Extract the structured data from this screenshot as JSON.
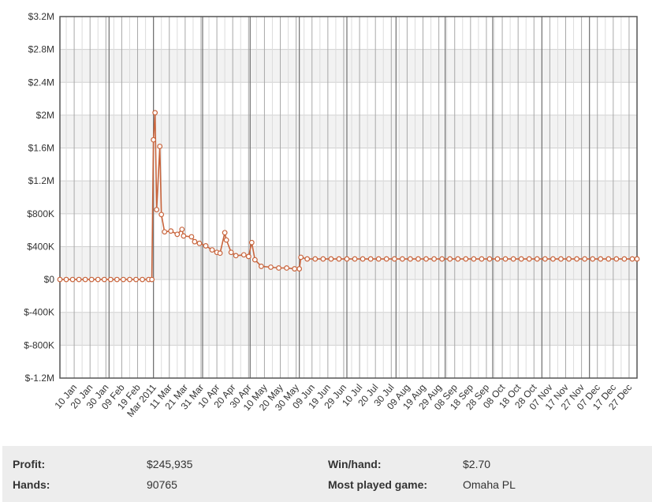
{
  "chart_data": {
    "type": "line",
    "y_ticks": [
      "$3.2M",
      "$2.8M",
      "$2.4M",
      "$2M",
      "$1.6M",
      "$1.2M",
      "$800K",
      "$400K",
      "$0",
      "$-400K",
      "$-800K",
      "$-1.2M"
    ],
    "ylim": [
      -1200000,
      3200000
    ],
    "x_ticks": [
      "10 Jan",
      "20 Jan",
      "30 Jan",
      "09 Feb",
      "19 Feb",
      "Mar 2011",
      "11 Mar",
      "21 Mar",
      "31 Mar",
      "10 Apr",
      "20 Apr",
      "30 Apr",
      "10 May",
      "20 May",
      "30 May",
      "09 Jun",
      "19 Jun",
      "29 Jun",
      "10 Jul",
      "20 Jul",
      "30 Jul",
      "09 Aug",
      "19 Aug",
      "29 Aug",
      "08 Sep",
      "18 Sep",
      "28 Sep",
      "08 Oct",
      "18 Oct",
      "28 Oct",
      "07 Nov",
      "17 Nov",
      "27 Nov",
      "07 Dec",
      "17 Dec",
      "27 Dec"
    ],
    "xlim": [
      "2011-01-01",
      "2011-12-31"
    ],
    "series": [
      {
        "color": "#c8643c",
        "points": [
          [
            "2011-01-01",
            0
          ],
          [
            "2011-01-05",
            0
          ],
          [
            "2011-01-09",
            0
          ],
          [
            "2011-01-13",
            0
          ],
          [
            "2011-01-17",
            0
          ],
          [
            "2011-01-21",
            0
          ],
          [
            "2011-01-25",
            0
          ],
          [
            "2011-01-29",
            0
          ],
          [
            "2011-02-02",
            0
          ],
          [
            "2011-02-06",
            0
          ],
          [
            "2011-02-10",
            0
          ],
          [
            "2011-02-14",
            0
          ],
          [
            "2011-02-18",
            0
          ],
          [
            "2011-02-22",
            0
          ],
          [
            "2011-02-26",
            0
          ],
          [
            "2011-02-28",
            0
          ],
          [
            "2011-03-01",
            1700000
          ],
          [
            "2011-03-02",
            2030000
          ],
          [
            "2011-03-03",
            850000
          ],
          [
            "2011-03-05",
            1620000
          ],
          [
            "2011-03-06",
            790000
          ],
          [
            "2011-03-08",
            580000
          ],
          [
            "2011-03-12",
            590000
          ],
          [
            "2011-03-16",
            550000
          ],
          [
            "2011-03-19",
            610000
          ],
          [
            "2011-03-20",
            530000
          ],
          [
            "2011-03-25",
            520000
          ],
          [
            "2011-03-27",
            460000
          ],
          [
            "2011-03-30",
            440000
          ],
          [
            "2011-04-03",
            410000
          ],
          [
            "2011-04-07",
            360000
          ],
          [
            "2011-04-10",
            330000
          ],
          [
            "2011-04-12",
            320000
          ],
          [
            "2011-04-15",
            570000
          ],
          [
            "2011-04-16",
            480000
          ],
          [
            "2011-04-19",
            330000
          ],
          [
            "2011-04-22",
            290000
          ],
          [
            "2011-04-27",
            300000
          ],
          [
            "2011-04-30",
            280000
          ],
          [
            "2011-05-02",
            450000
          ],
          [
            "2011-05-04",
            240000
          ],
          [
            "2011-05-08",
            160000
          ],
          [
            "2011-05-14",
            150000
          ],
          [
            "2011-05-19",
            140000
          ],
          [
            "2011-05-24",
            140000
          ],
          [
            "2011-05-29",
            130000
          ],
          [
            "2011-06-01",
            130000
          ],
          [
            "2011-06-02",
            270000
          ],
          [
            "2011-06-06",
            250000
          ],
          [
            "2011-06-11",
            250000
          ],
          [
            "2011-06-16",
            250000
          ],
          [
            "2011-06-21",
            250000
          ],
          [
            "2011-06-26",
            250000
          ],
          [
            "2011-07-01",
            250000
          ],
          [
            "2011-07-06",
            250000
          ],
          [
            "2011-07-11",
            250000
          ],
          [
            "2011-07-16",
            250000
          ],
          [
            "2011-07-21",
            250000
          ],
          [
            "2011-07-26",
            250000
          ],
          [
            "2011-07-31",
            250000
          ],
          [
            "2011-08-05",
            250000
          ],
          [
            "2011-08-10",
            250000
          ],
          [
            "2011-08-15",
            250000
          ],
          [
            "2011-08-20",
            250000
          ],
          [
            "2011-08-25",
            250000
          ],
          [
            "2011-08-30",
            250000
          ],
          [
            "2011-09-04",
            250000
          ],
          [
            "2011-09-09",
            250000
          ],
          [
            "2011-09-14",
            250000
          ],
          [
            "2011-09-19",
            250000
          ],
          [
            "2011-09-24",
            250000
          ],
          [
            "2011-09-29",
            250000
          ],
          [
            "2011-10-04",
            250000
          ],
          [
            "2011-10-09",
            250000
          ],
          [
            "2011-10-14",
            250000
          ],
          [
            "2011-10-19",
            250000
          ],
          [
            "2011-10-24",
            250000
          ],
          [
            "2011-10-29",
            250000
          ],
          [
            "2011-11-03",
            250000
          ],
          [
            "2011-11-08",
            250000
          ],
          [
            "2011-11-13",
            250000
          ],
          [
            "2011-11-18",
            250000
          ],
          [
            "2011-11-23",
            250000
          ],
          [
            "2011-11-28",
            250000
          ],
          [
            "2011-12-03",
            250000
          ],
          [
            "2011-12-08",
            250000
          ],
          [
            "2011-12-13",
            250000
          ],
          [
            "2011-12-18",
            250000
          ],
          [
            "2011-12-23",
            250000
          ],
          [
            "2011-12-28",
            250000
          ],
          [
            "2011-12-31",
            250000
          ]
        ]
      }
    ],
    "grid": true,
    "legend": "none"
  },
  "stats": {
    "profit_label": "Profit:",
    "profit_value": "$245,935",
    "hands_label": "Hands:",
    "hands_value": "90765",
    "winhand_label": "Win/hand:",
    "winhand_value": "$2.70",
    "game_label": "Most played game:",
    "game_value": "Omaha PL"
  }
}
